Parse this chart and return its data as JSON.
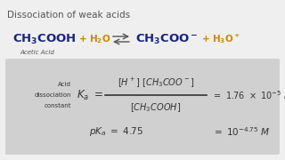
{
  "title": "Dissociation of weak acids",
  "bg_color": "#efefef",
  "box_color": "#d0d0d0",
  "title_color": "#555555",
  "dark_color": "#333333",
  "orange_color": "#cc8800",
  "blue_color": "#1a237e",
  "acetic_acid_label": "Acetic Acid"
}
